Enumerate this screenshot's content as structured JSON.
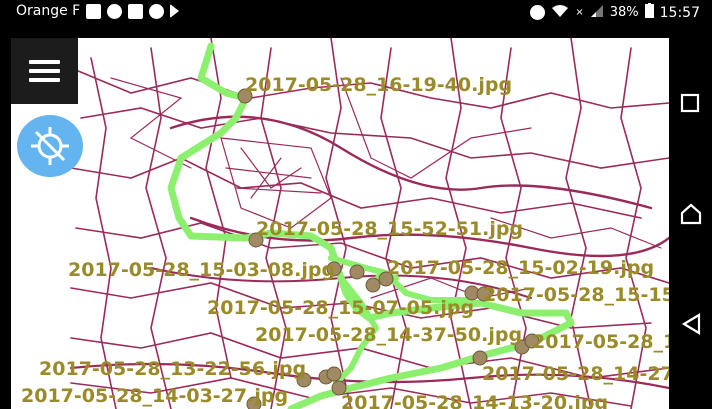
{
  "status_bar": {
    "carrier": "Orange F",
    "signal_x": "×",
    "battery": "38%",
    "time": "15:57"
  },
  "icons": {
    "menu": "hamburger-menu-icon",
    "gps_off": "gps-off-icon",
    "back": "back-triangle-icon",
    "home": "home-icon",
    "recents": "recents-square-icon"
  },
  "colors": {
    "roads": "#9b2a5a",
    "track": "#8cf06e",
    "marker": "#a08a64",
    "label": "#9a8a28",
    "gps_button": "#64b4f0"
  },
  "photos": [
    {
      "label": "2017-05-28_16-19-40.jpg"
    },
    {
      "label": "2017-05-28_15-52-51.jpg"
    },
    {
      "label": "2017-05-28_15-03-08.jpg"
    },
    {
      "label": "2017-05-28_15-02-19.jpg"
    },
    {
      "label": "2017-05-28_15-15"
    },
    {
      "label": "2017-05-28_15-07-05.jpg"
    },
    {
      "label": "2017-05-28_14-37-50.jpg"
    },
    {
      "label": "2017-05-28_1"
    },
    {
      "label": "2017-05-28_13-22-56.jpg"
    },
    {
      "label": "2017-05-28_14-27"
    },
    {
      "label": "2017-05-28_14-03-27.jpg"
    },
    {
      "label": "2017-05-28_14-13-20.jpg"
    }
  ]
}
